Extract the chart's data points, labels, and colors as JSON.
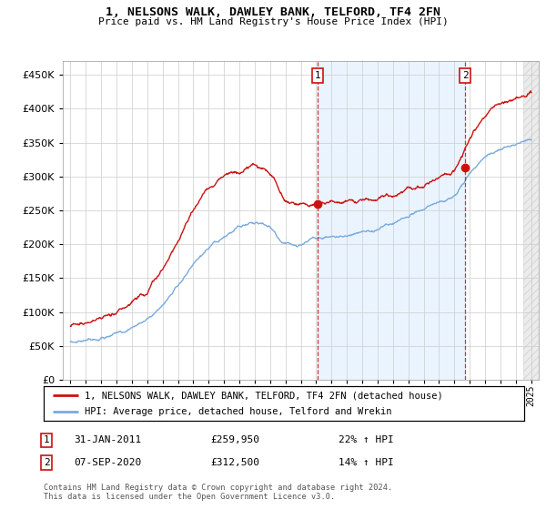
{
  "title1": "1, NELSONS WALK, DAWLEY BANK, TELFORD, TF4 2FN",
  "title2": "Price paid vs. HM Land Registry's House Price Index (HPI)",
  "legend_line1": "1, NELSONS WALK, DAWLEY BANK, TELFORD, TF4 2FN (detached house)",
  "legend_line2": "HPI: Average price, detached house, Telford and Wrekin",
  "annotation1_date": "31-JAN-2011",
  "annotation1_price": "£259,950",
  "annotation1_hpi": "22% ↑ HPI",
  "annotation2_date": "07-SEP-2020",
  "annotation2_price": "£312,500",
  "annotation2_hpi": "14% ↑ HPI",
  "footer": "Contains HM Land Registry data © Crown copyright and database right 2024.\nThis data is licensed under the Open Government Licence v3.0.",
  "sale1_x": 2011.08,
  "sale1_y": 259950,
  "sale2_x": 2020.69,
  "sale2_y": 312500,
  "hpi_color": "#7aaadd",
  "price_color": "#cc1111",
  "vline_color": "#cc1111",
  "bg_color": "#ddeeff",
  "shade_color": "#ddeeff",
  "ylim_min": 0,
  "ylim_max": 470000,
  "xlim_min": 1994.5,
  "xlim_max": 2025.5,
  "yticks": [
    0,
    50000,
    100000,
    150000,
    200000,
    250000,
    300000,
    350000,
    400000,
    450000
  ],
  "xticks": [
    1995,
    1996,
    1997,
    1998,
    1999,
    2000,
    2001,
    2002,
    2003,
    2004,
    2005,
    2006,
    2007,
    2008,
    2009,
    2010,
    2011,
    2012,
    2013,
    2014,
    2015,
    2016,
    2017,
    2018,
    2019,
    2020,
    2021,
    2022,
    2023,
    2024,
    2025
  ]
}
